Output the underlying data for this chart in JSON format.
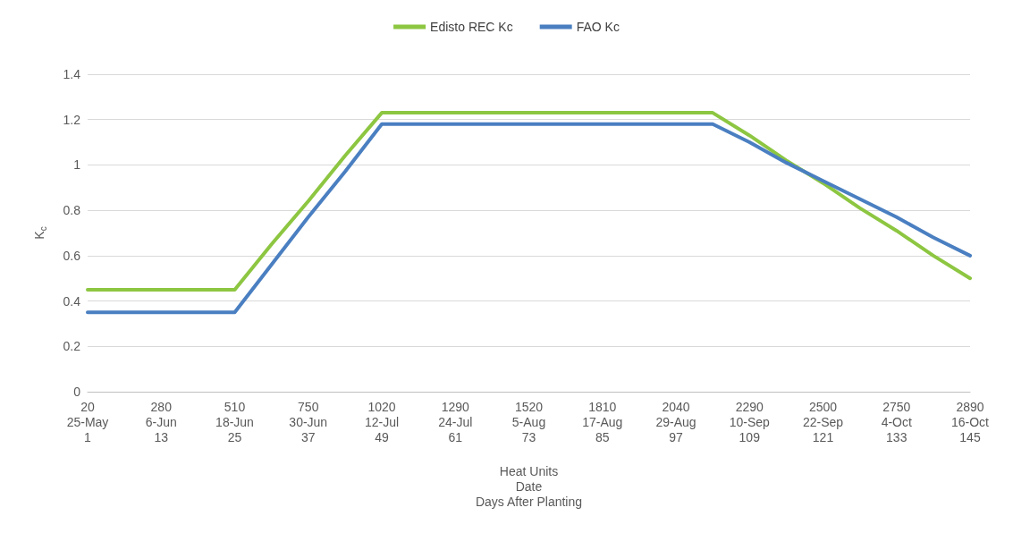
{
  "chart_data": {
    "type": "line",
    "xlabel": "Heat Units\nDate\nDays After Planting",
    "ylabel": "K$_{c}$",
    "categories": [
      "20\n25-May\n1",
      null,
      "280\n6-Jun\n13",
      null,
      "510\n18-Jun\n25",
      null,
      "750\n30-Jun\n37",
      null,
      "1020\n12-Jul\n49",
      null,
      "1290\n24-Jul\n61",
      null,
      "1520\n5-Aug\n73",
      null,
      "1810\n17-Aug\n85",
      null,
      "2040\n29-Aug\n97",
      null,
      "2290\n10-Sep\n109",
      null,
      "2500\n22-Sep\n121",
      null,
      "2750\n4-Oct\n133",
      null,
      "2890\n16-Oct\n145"
    ],
    "series": [
      {
        "name": "Edisto REC Kc",
        "color": "#8dc641",
        "values": [
          0.45,
          0.45,
          0.45,
          0.45,
          0.45,
          0.65,
          0.84,
          1.04,
          1.23,
          1.23,
          1.23,
          1.23,
          1.23,
          1.23,
          1.23,
          1.23,
          1.23,
          1.23,
          1.13,
          1.02,
          0.92,
          0.81,
          0.71,
          0.6,
          0.5
        ]
      },
      {
        "name": "FAO Kc",
        "color": "#4a7fc1",
        "values": [
          0.35,
          0.35,
          0.35,
          0.35,
          0.35,
          0.56,
          0.77,
          0.97,
          1.18,
          1.18,
          1.18,
          1.18,
          1.18,
          1.18,
          1.18,
          1.18,
          1.18,
          1.18,
          1.1,
          1.01,
          0.93,
          0.85,
          0.77,
          0.68,
          0.6
        ]
      }
    ],
    "ylim": [
      0,
      1.4
    ],
    "yticks": [
      0,
      0.2,
      0.4,
      0.6,
      0.8,
      1,
      1.2,
      1.4
    ],
    "grid": "y",
    "legend": "top",
    "marker": "none",
    "line_style": "solid"
  }
}
